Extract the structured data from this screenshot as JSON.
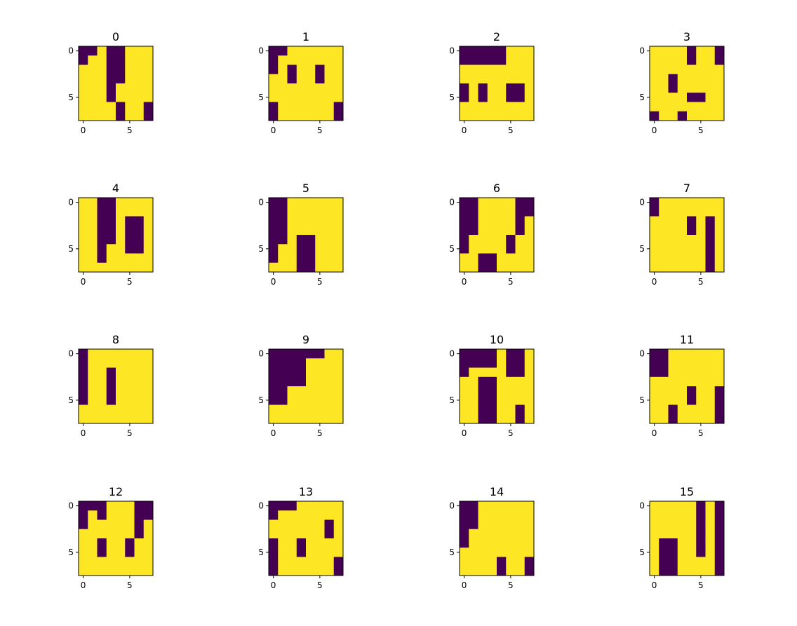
{
  "chart_data": {
    "type": "heatmap",
    "grid_size": 8,
    "colors": {
      "zero": "#440154",
      "one": "#fde725"
    },
    "xticks": [
      0,
      5
    ],
    "yticks": [
      0,
      5
    ],
    "panels": [
      {
        "title": "0",
        "matrix": [
          [
            0,
            0,
            1,
            0,
            0,
            1,
            1,
            1
          ],
          [
            0,
            1,
            1,
            0,
            0,
            1,
            1,
            1
          ],
          [
            1,
            1,
            1,
            0,
            0,
            1,
            1,
            1
          ],
          [
            1,
            1,
            1,
            0,
            0,
            1,
            1,
            1
          ],
          [
            1,
            1,
            1,
            0,
            1,
            1,
            1,
            1
          ],
          [
            1,
            1,
            1,
            0,
            1,
            1,
            1,
            1
          ],
          [
            1,
            1,
            1,
            1,
            0,
            1,
            1,
            0
          ],
          [
            1,
            1,
            1,
            1,
            0,
            1,
            1,
            0
          ]
        ]
      },
      {
        "title": "1",
        "matrix": [
          [
            0,
            0,
            1,
            1,
            1,
            1,
            1,
            1
          ],
          [
            0,
            1,
            1,
            1,
            1,
            1,
            1,
            1
          ],
          [
            0,
            1,
            0,
            1,
            1,
            0,
            1,
            1
          ],
          [
            1,
            1,
            0,
            1,
            1,
            0,
            1,
            1
          ],
          [
            1,
            1,
            1,
            1,
            1,
            1,
            1,
            1
          ],
          [
            1,
            1,
            1,
            1,
            1,
            1,
            1,
            1
          ],
          [
            0,
            1,
            1,
            1,
            1,
            1,
            1,
            0
          ],
          [
            0,
            1,
            1,
            1,
            1,
            1,
            1,
            0
          ]
        ]
      },
      {
        "title": "2",
        "matrix": [
          [
            0,
            0,
            0,
            0,
            0,
            1,
            1,
            1
          ],
          [
            0,
            0,
            0,
            0,
            0,
            1,
            1,
            1
          ],
          [
            1,
            1,
            1,
            1,
            1,
            1,
            1,
            1
          ],
          [
            1,
            1,
            1,
            1,
            1,
            1,
            1,
            1
          ],
          [
            0,
            1,
            0,
            1,
            1,
            0,
            0,
            1
          ],
          [
            0,
            1,
            0,
            1,
            1,
            0,
            0,
            1
          ],
          [
            1,
            1,
            1,
            1,
            1,
            1,
            1,
            1
          ],
          [
            1,
            1,
            1,
            1,
            1,
            1,
            1,
            1
          ]
        ]
      },
      {
        "title": "3",
        "matrix": [
          [
            1,
            1,
            1,
            1,
            0,
            1,
            1,
            0
          ],
          [
            1,
            1,
            1,
            1,
            0,
            1,
            1,
            0
          ],
          [
            1,
            1,
            1,
            1,
            1,
            1,
            1,
            1
          ],
          [
            1,
            1,
            0,
            1,
            1,
            1,
            1,
            1
          ],
          [
            1,
            1,
            0,
            1,
            1,
            1,
            1,
            1
          ],
          [
            1,
            1,
            1,
            1,
            0,
            0,
            1,
            1
          ],
          [
            1,
            1,
            1,
            1,
            1,
            1,
            1,
            1
          ],
          [
            0,
            1,
            1,
            0,
            1,
            1,
            1,
            1
          ]
        ]
      },
      {
        "title": "4",
        "matrix": [
          [
            1,
            1,
            0,
            0,
            1,
            1,
            1,
            1
          ],
          [
            1,
            1,
            0,
            0,
            1,
            1,
            1,
            1
          ],
          [
            1,
            1,
            0,
            0,
            1,
            0,
            0,
            1
          ],
          [
            1,
            1,
            0,
            0,
            1,
            0,
            0,
            1
          ],
          [
            1,
            1,
            0,
            0,
            1,
            0,
            0,
            1
          ],
          [
            1,
            1,
            0,
            1,
            1,
            0,
            0,
            1
          ],
          [
            1,
            1,
            0,
            1,
            1,
            1,
            1,
            1
          ],
          [
            1,
            1,
            1,
            1,
            1,
            1,
            1,
            1
          ]
        ]
      },
      {
        "title": "5",
        "matrix": [
          [
            0,
            0,
            1,
            1,
            1,
            1,
            1,
            1
          ],
          [
            0,
            0,
            1,
            1,
            1,
            1,
            1,
            1
          ],
          [
            0,
            0,
            1,
            1,
            1,
            1,
            1,
            1
          ],
          [
            0,
            0,
            1,
            1,
            1,
            1,
            1,
            1
          ],
          [
            0,
            0,
            1,
            0,
            0,
            1,
            1,
            1
          ],
          [
            0,
            1,
            1,
            0,
            0,
            1,
            1,
            1
          ],
          [
            0,
            1,
            1,
            0,
            0,
            1,
            1,
            1
          ],
          [
            1,
            1,
            1,
            0,
            0,
            1,
            1,
            1
          ]
        ]
      },
      {
        "title": "6",
        "matrix": [
          [
            0,
            0,
            1,
            1,
            1,
            1,
            0,
            0
          ],
          [
            0,
            0,
            1,
            1,
            1,
            1,
            0,
            0
          ],
          [
            0,
            0,
            1,
            1,
            1,
            1,
            0,
            1
          ],
          [
            0,
            0,
            1,
            1,
            1,
            1,
            0,
            1
          ],
          [
            0,
            1,
            1,
            1,
            1,
            0,
            1,
            1
          ],
          [
            0,
            1,
            1,
            1,
            1,
            0,
            1,
            1
          ],
          [
            1,
            1,
            0,
            0,
            1,
            1,
            1,
            1
          ],
          [
            1,
            1,
            0,
            0,
            1,
            1,
            1,
            1
          ]
        ]
      },
      {
        "title": "7",
        "matrix": [
          [
            0,
            1,
            1,
            1,
            1,
            1,
            1,
            1
          ],
          [
            0,
            1,
            1,
            1,
            1,
            1,
            1,
            1
          ],
          [
            1,
            1,
            1,
            1,
            0,
            1,
            0,
            1
          ],
          [
            1,
            1,
            1,
            1,
            0,
            1,
            0,
            1
          ],
          [
            1,
            1,
            1,
            1,
            1,
            1,
            0,
            1
          ],
          [
            1,
            1,
            1,
            1,
            1,
            1,
            0,
            1
          ],
          [
            1,
            1,
            1,
            1,
            1,
            1,
            0,
            1
          ],
          [
            1,
            1,
            1,
            1,
            1,
            1,
            0,
            1
          ]
        ]
      },
      {
        "title": "8",
        "matrix": [
          [
            0,
            1,
            1,
            1,
            1,
            1,
            1,
            1
          ],
          [
            0,
            1,
            1,
            1,
            1,
            1,
            1,
            1
          ],
          [
            0,
            1,
            1,
            0,
            1,
            1,
            1,
            1
          ],
          [
            0,
            1,
            1,
            0,
            1,
            1,
            1,
            1
          ],
          [
            0,
            1,
            1,
            0,
            1,
            1,
            1,
            1
          ],
          [
            0,
            1,
            1,
            0,
            1,
            1,
            1,
            1
          ],
          [
            1,
            1,
            1,
            1,
            1,
            1,
            1,
            1
          ],
          [
            1,
            1,
            1,
            1,
            1,
            1,
            1,
            1
          ]
        ]
      },
      {
        "title": "9",
        "matrix": [
          [
            0,
            0,
            0,
            0,
            0,
            0,
            1,
            1
          ],
          [
            0,
            0,
            0,
            0,
            1,
            1,
            1,
            1
          ],
          [
            0,
            0,
            0,
            0,
            1,
            1,
            1,
            1
          ],
          [
            0,
            0,
            0,
            0,
            1,
            1,
            1,
            1
          ],
          [
            0,
            0,
            1,
            1,
            1,
            1,
            1,
            1
          ],
          [
            0,
            0,
            1,
            1,
            1,
            1,
            1,
            1
          ],
          [
            1,
            1,
            1,
            1,
            1,
            1,
            1,
            1
          ],
          [
            1,
            1,
            1,
            1,
            1,
            1,
            1,
            1
          ]
        ]
      },
      {
        "title": "10",
        "matrix": [
          [
            0,
            0,
            0,
            0,
            1,
            0,
            0,
            1
          ],
          [
            0,
            0,
            0,
            0,
            1,
            0,
            0,
            1
          ],
          [
            0,
            1,
            1,
            1,
            1,
            0,
            0,
            1
          ],
          [
            1,
            1,
            0,
            0,
            1,
            1,
            1,
            1
          ],
          [
            1,
            1,
            0,
            0,
            1,
            1,
            1,
            1
          ],
          [
            1,
            1,
            0,
            0,
            1,
            1,
            1,
            1
          ],
          [
            1,
            1,
            0,
            0,
            1,
            1,
            0,
            1
          ],
          [
            1,
            1,
            0,
            0,
            1,
            1,
            0,
            1
          ]
        ]
      },
      {
        "title": "11",
        "matrix": [
          [
            0,
            0,
            1,
            1,
            1,
            1,
            1,
            1
          ],
          [
            0,
            0,
            1,
            1,
            1,
            1,
            1,
            1
          ],
          [
            0,
            0,
            1,
            1,
            1,
            1,
            1,
            1
          ],
          [
            1,
            1,
            1,
            1,
            1,
            1,
            1,
            1
          ],
          [
            1,
            1,
            1,
            1,
            0,
            1,
            1,
            0
          ],
          [
            1,
            1,
            1,
            1,
            0,
            1,
            1,
            0
          ],
          [
            1,
            1,
            0,
            1,
            1,
            1,
            1,
            0
          ],
          [
            1,
            1,
            0,
            1,
            1,
            1,
            1,
            0
          ]
        ]
      },
      {
        "title": "12",
        "matrix": [
          [
            0,
            0,
            0,
            1,
            1,
            1,
            0,
            0
          ],
          [
            0,
            1,
            0,
            1,
            1,
            1,
            0,
            0
          ],
          [
            0,
            1,
            1,
            1,
            1,
            1,
            0,
            1
          ],
          [
            1,
            1,
            1,
            1,
            1,
            1,
            0,
            1
          ],
          [
            1,
            1,
            0,
            1,
            1,
            0,
            1,
            1
          ],
          [
            1,
            1,
            0,
            1,
            1,
            0,
            1,
            1
          ],
          [
            1,
            1,
            1,
            1,
            1,
            1,
            1,
            1
          ],
          [
            1,
            1,
            1,
            1,
            1,
            1,
            1,
            1
          ]
        ]
      },
      {
        "title": "13",
        "matrix": [
          [
            0,
            0,
            0,
            1,
            1,
            1,
            1,
            1
          ],
          [
            0,
            1,
            1,
            1,
            1,
            1,
            1,
            1
          ],
          [
            1,
            1,
            1,
            1,
            1,
            1,
            0,
            1
          ],
          [
            1,
            1,
            1,
            1,
            1,
            1,
            0,
            1
          ],
          [
            0,
            1,
            1,
            0,
            1,
            1,
            1,
            1
          ],
          [
            0,
            1,
            1,
            0,
            1,
            1,
            1,
            1
          ],
          [
            0,
            1,
            1,
            1,
            1,
            1,
            1,
            0
          ],
          [
            0,
            1,
            1,
            1,
            1,
            1,
            1,
            0
          ]
        ]
      },
      {
        "title": "14",
        "matrix": [
          [
            0,
            0,
            1,
            1,
            1,
            1,
            1,
            1
          ],
          [
            0,
            0,
            1,
            1,
            1,
            1,
            1,
            1
          ],
          [
            0,
            0,
            1,
            1,
            1,
            1,
            1,
            1
          ],
          [
            0,
            1,
            1,
            1,
            1,
            1,
            1,
            1
          ],
          [
            0,
            1,
            1,
            1,
            1,
            1,
            1,
            1
          ],
          [
            1,
            1,
            1,
            1,
            1,
            1,
            1,
            1
          ],
          [
            1,
            1,
            1,
            1,
            0,
            1,
            1,
            0
          ],
          [
            1,
            1,
            1,
            1,
            0,
            1,
            1,
            0
          ]
        ]
      },
      {
        "title": "15",
        "matrix": [
          [
            1,
            1,
            1,
            1,
            1,
            0,
            1,
            0
          ],
          [
            1,
            1,
            1,
            1,
            1,
            0,
            1,
            0
          ],
          [
            1,
            1,
            1,
            1,
            1,
            0,
            1,
            0
          ],
          [
            1,
            1,
            1,
            1,
            1,
            0,
            1,
            0
          ],
          [
            1,
            0,
            0,
            1,
            1,
            0,
            1,
            0
          ],
          [
            1,
            0,
            0,
            1,
            1,
            0,
            1,
            0
          ],
          [
            1,
            0,
            0,
            1,
            1,
            1,
            1,
            0
          ],
          [
            1,
            0,
            0,
            1,
            1,
            1,
            1,
            0
          ]
        ]
      }
    ]
  }
}
